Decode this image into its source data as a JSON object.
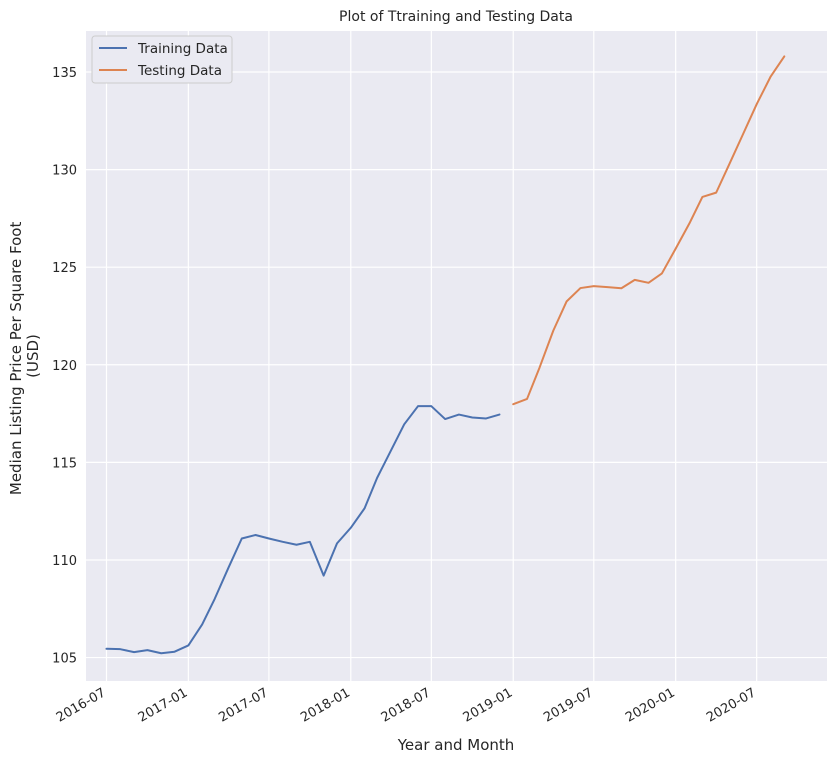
{
  "chart_data": {
    "type": "line",
    "title": "Plot of Ttraining and Testing Data",
    "xlabel": "Year and Month",
    "ylabel_lines": [
      "Median Listing Price Per Square Foot",
      "(USD)"
    ],
    "x_ticks": [
      "2016-07",
      "2017-01",
      "2017-07",
      "2018-01",
      "2018-07",
      "2019-01",
      "2019-07",
      "2020-01",
      "2020-07"
    ],
    "y_ticks": [
      105,
      110,
      115,
      120,
      125,
      130,
      135
    ],
    "ylim": [
      103.8,
      137.1
    ],
    "xlim": [
      "2016-05-16",
      "2020-12-06"
    ],
    "grid": true,
    "legend_position": "top-left",
    "colors": {
      "background": "#EAEAF2",
      "grid": "#FFFFFF",
      "training": "#4C72B0",
      "testing": "#DD8452"
    },
    "series": [
      {
        "name": "Training Data",
        "color": "#4C72B0",
        "points": [
          [
            "2016-07-01",
            105.45
          ],
          [
            "2016-08-01",
            105.43
          ],
          [
            "2016-09-01",
            105.28
          ],
          [
            "2016-10-01",
            105.38
          ],
          [
            "2016-11-01",
            105.22
          ],
          [
            "2016-12-01",
            105.3
          ],
          [
            "2017-01-01",
            105.62
          ],
          [
            "2017-02-01",
            106.7
          ],
          [
            "2017-03-01",
            108.0
          ],
          [
            "2017-04-01",
            109.6
          ],
          [
            "2017-05-01",
            111.1
          ],
          [
            "2017-06-01",
            111.28
          ],
          [
            "2017-07-01",
            111.1
          ],
          [
            "2017-08-01",
            110.93
          ],
          [
            "2017-09-01",
            110.78
          ],
          [
            "2017-10-01",
            110.93
          ],
          [
            "2017-11-01",
            109.2
          ],
          [
            "2017-12-01",
            110.85
          ],
          [
            "2018-01-01",
            111.65
          ],
          [
            "2018-02-01",
            112.65
          ],
          [
            "2018-03-01",
            114.2
          ],
          [
            "2018-04-01",
            115.6
          ],
          [
            "2018-05-01",
            116.95
          ],
          [
            "2018-06-01",
            117.88
          ],
          [
            "2018-07-01",
            117.88
          ],
          [
            "2018-08-01",
            117.22
          ],
          [
            "2018-09-01",
            117.45
          ],
          [
            "2018-10-01",
            117.3
          ],
          [
            "2018-11-01",
            117.25
          ],
          [
            "2018-12-01",
            117.45
          ]
        ]
      },
      {
        "name": "Testing Data",
        "color": "#DD8452",
        "points": [
          [
            "2019-01-01",
            117.98
          ],
          [
            "2019-02-01",
            118.25
          ],
          [
            "2019-03-01",
            119.85
          ],
          [
            "2019-04-01",
            121.75
          ],
          [
            "2019-05-01",
            123.25
          ],
          [
            "2019-06-01",
            123.93
          ],
          [
            "2019-07-01",
            124.03
          ],
          [
            "2019-08-01",
            123.98
          ],
          [
            "2019-09-01",
            123.92
          ],
          [
            "2019-10-01",
            124.35
          ],
          [
            "2019-11-01",
            124.2
          ],
          [
            "2019-12-01",
            124.68
          ],
          [
            "2020-01-01",
            125.95
          ],
          [
            "2020-02-01",
            127.25
          ],
          [
            "2020-03-01",
            128.6
          ],
          [
            "2020-04-01",
            128.82
          ],
          [
            "2020-05-01",
            130.3
          ],
          [
            "2020-06-01",
            131.85
          ],
          [
            "2020-07-01",
            133.35
          ],
          [
            "2020-08-01",
            134.75
          ],
          [
            "2020-09-01",
            135.8
          ]
        ]
      }
    ]
  }
}
